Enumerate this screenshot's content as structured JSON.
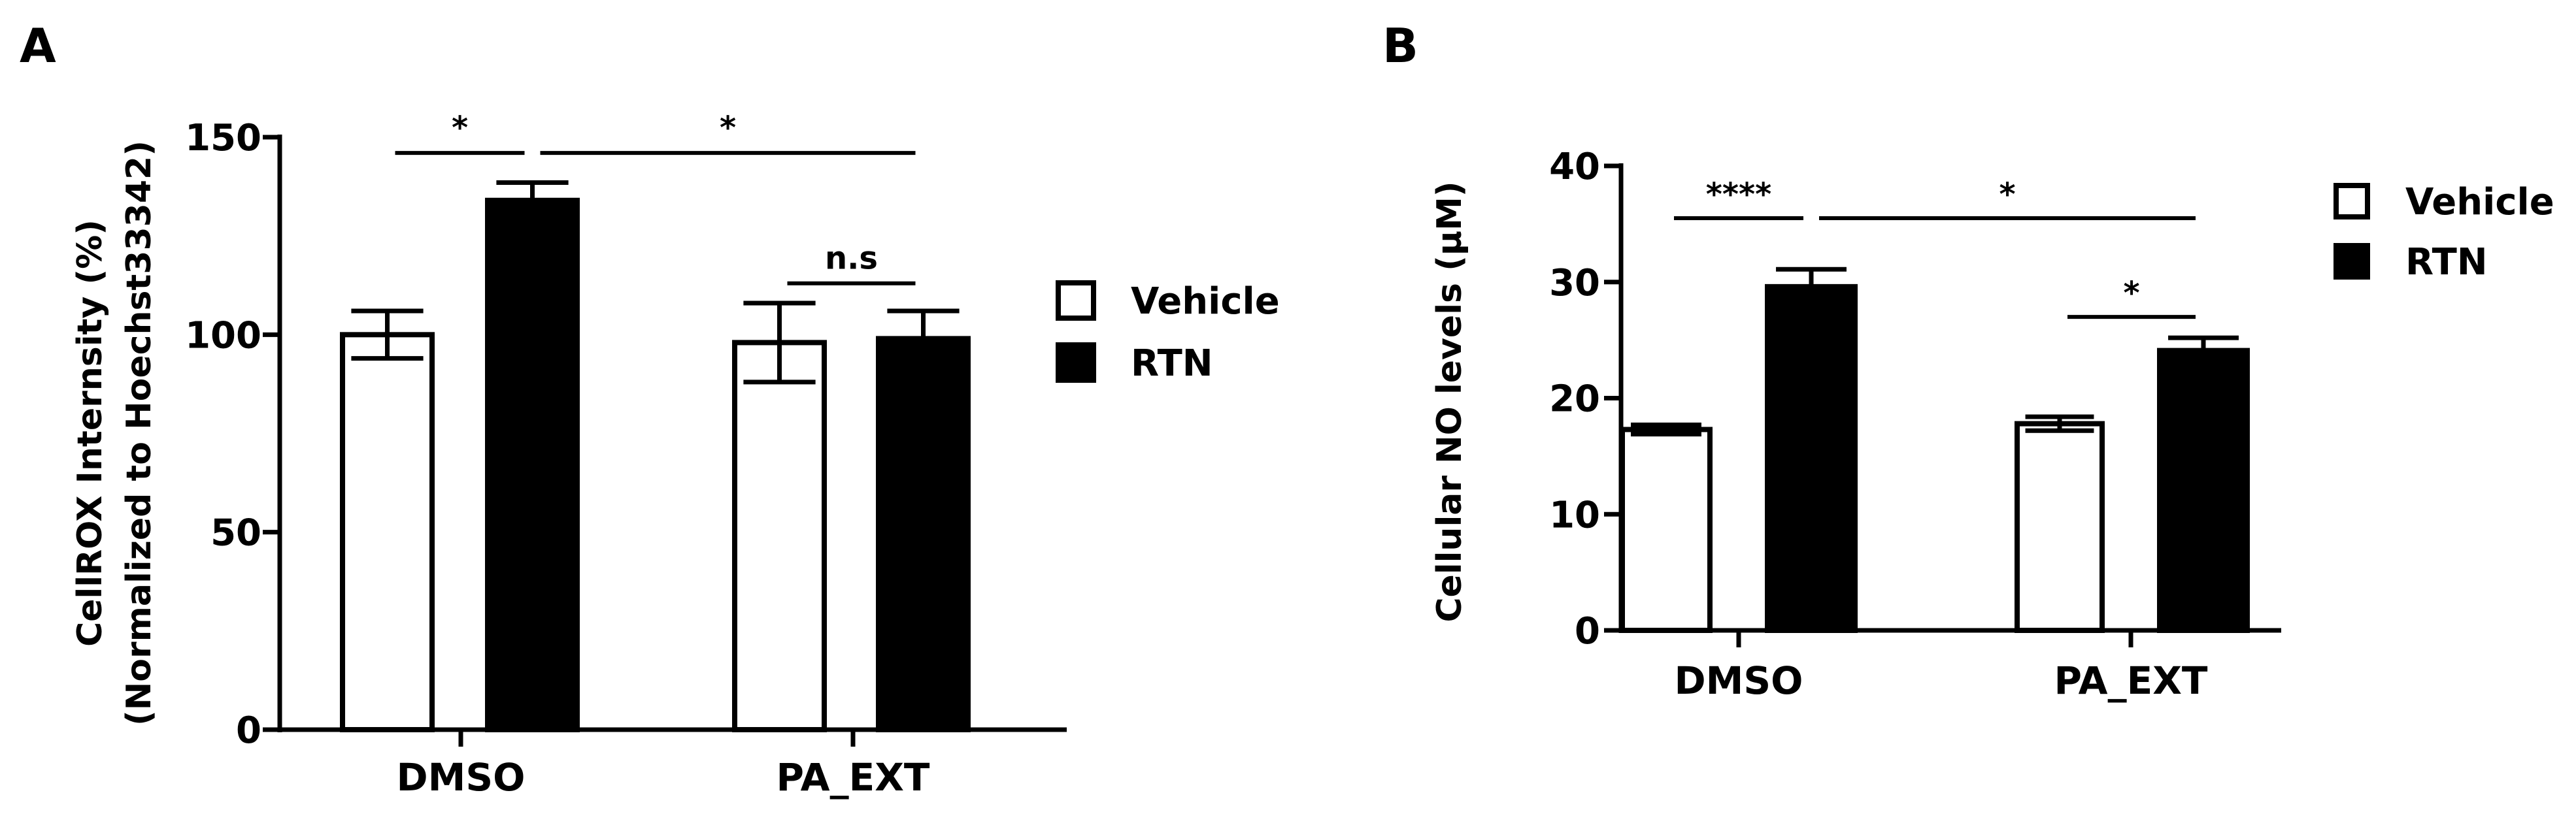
{
  "chart_data": [
    {
      "panel": "A",
      "type": "bar",
      "ylabel_lines": [
        "CellROX Internsity (%)",
        "(Normalized to Hoechst33342)"
      ],
      "categories": [
        "DMSO",
        "PA_EXT"
      ],
      "ylim": [
        0,
        150
      ],
      "yticks": [
        0,
        50,
        100,
        150
      ],
      "legend": [
        "Vehicle",
        "RTN"
      ],
      "legend_position": "right",
      "series": [
        {
          "name": "Vehicle",
          "fill": "#ffffff",
          "values": [
            100,
            98
          ],
          "errors": [
            6,
            10
          ]
        },
        {
          "name": "RTN",
          "fill": "#000000",
          "values": [
            134,
            99
          ],
          "errors": [
            4.5,
            7
          ]
        }
      ],
      "significance": [
        {
          "label": "*",
          "from": [
            0,
            0
          ],
          "to": [
            0,
            1
          ],
          "y": 146
        },
        {
          "label": "*",
          "from": [
            0,
            1
          ],
          "to": [
            1,
            1
          ],
          "y": 146
        },
        {
          "label": "n.s",
          "from": [
            1,
            0
          ],
          "to": [
            1,
            1
          ],
          "y": 113
        }
      ]
    },
    {
      "panel": "B",
      "type": "bar",
      "ylabel_lines": [
        "Cellular NO levels  (μM)"
      ],
      "categories": [
        "DMSO",
        "PA_EXT"
      ],
      "ylim": [
        0,
        40
      ],
      "yticks": [
        0,
        10,
        20,
        30,
        40
      ],
      "legend": [
        "Vehicle",
        "RTN"
      ],
      "legend_position": "top-right",
      "series": [
        {
          "name": "Vehicle",
          "fill": "#ffffff",
          "values": [
            17.3,
            17.8
          ],
          "errors": [
            0.4,
            0.6
          ]
        },
        {
          "name": "RTN",
          "fill": "#000000",
          "values": [
            29.6,
            24.1
          ],
          "errors": [
            1.5,
            1.1
          ]
        }
      ],
      "significance": [
        {
          "label": "****",
          "from": [
            0,
            0
          ],
          "to": [
            0,
            1
          ],
          "y": 35.5
        },
        {
          "label": "*",
          "from": [
            0,
            1
          ],
          "to": [
            1,
            1
          ],
          "y": 35.5
        },
        {
          "label": "*",
          "from": [
            1,
            0
          ],
          "to": [
            1,
            1
          ],
          "y": 27
        }
      ]
    }
  ]
}
